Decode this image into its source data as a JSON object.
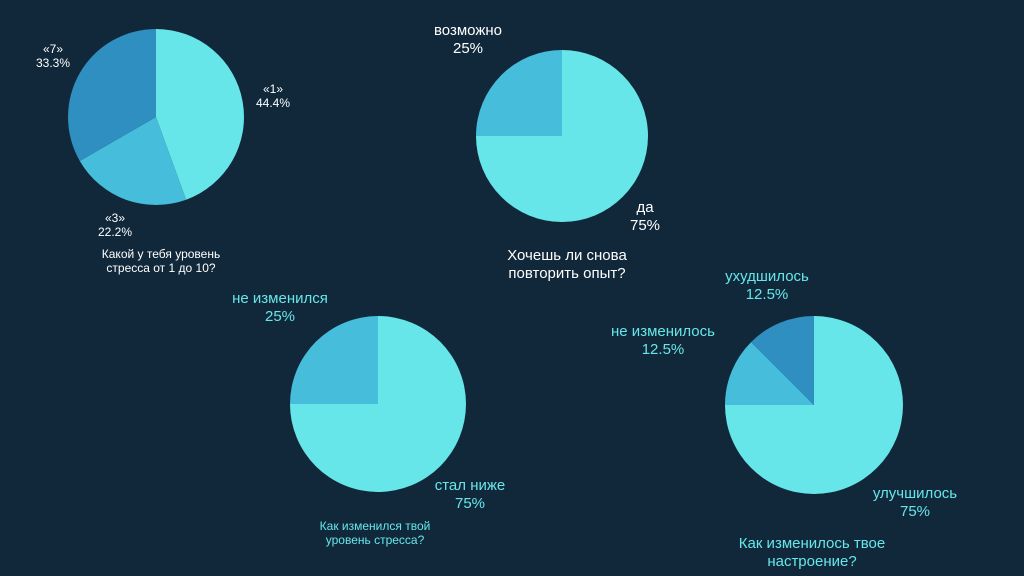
{
  "chart_data": [
    {
      "type": "pie",
      "title": "Какой у тебя уровень стресса от 1 до 10?",
      "slices": [
        {
          "label": "«1»",
          "value": 44.4,
          "display": "44.4%",
          "color": "#67e6ea"
        },
        {
          "label": "«3»",
          "value": 22.2,
          "display": "22.2%",
          "color": "#46bedb"
        },
        {
          "label": "«7»",
          "value": 33.3,
          "display": "33.3%",
          "color": "#2e8fc0"
        }
      ]
    },
    {
      "type": "pie",
      "title": "Хочешь ли снова повторить опыт?",
      "slices": [
        {
          "label": "да",
          "value": 75,
          "display": "75%",
          "color": "#67e6ea"
        },
        {
          "label": "возможно",
          "value": 25,
          "display": "25%",
          "color": "#46bedb"
        }
      ]
    },
    {
      "type": "pie",
      "title": "Как изменился твой уровень стресса?",
      "slices": [
        {
          "label": "стал ниже",
          "value": 75,
          "display": "75%",
          "color": "#67e6ea"
        },
        {
          "label": "не изменился",
          "value": 25,
          "display": "25%",
          "color": "#46bedb"
        }
      ]
    },
    {
      "type": "pie",
      "title": "Как изменилось твое настроение?",
      "slices": [
        {
          "label": "улучшилось",
          "value": 75,
          "display": "75%",
          "color": "#67e6ea"
        },
        {
          "label": "не изменилось",
          "value": 12.5,
          "display": "12.5%",
          "color": "#46bedb"
        },
        {
          "label": "ухудшилось",
          "value": 12.5,
          "display": "12.5%",
          "color": "#2e8fc0"
        }
      ]
    }
  ]
}
